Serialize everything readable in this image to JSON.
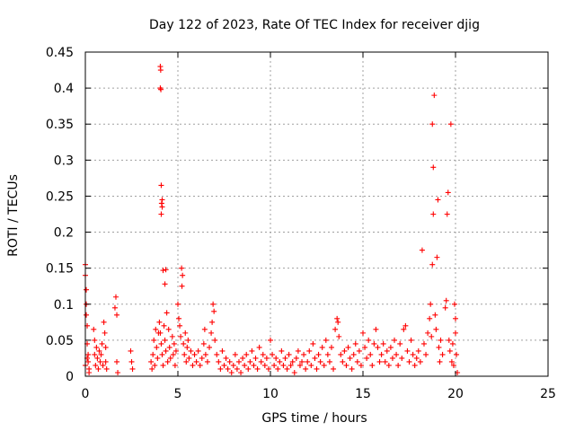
{
  "chart_data": {
    "type": "scatter",
    "title": "Day 122 of 2023, Rate Of TEC Index for receiver djig",
    "xlabel": "GPS time / hours",
    "ylabel": "ROTI / TECUs",
    "xlim": [
      0,
      25
    ],
    "ylim": [
      0,
      0.45
    ],
    "xticks": [
      "0",
      "5",
      "10",
      "15",
      "20",
      "25"
    ],
    "yticks": [
      "0",
      "0.05",
      "0.1",
      "0.15",
      "0.2",
      "0.25",
      "0.3",
      "0.35",
      "0.4",
      "0.45"
    ],
    "grid": true,
    "marker": "plus",
    "color": "#ff0000",
    "series": [
      {
        "points": [
          [
            0.0,
            0.155
          ],
          [
            0.0,
            0.14
          ],
          [
            0.05,
            0.12
          ],
          [
            0.05,
            0.1
          ],
          [
            0.05,
            0.085
          ],
          [
            0.1,
            0.07
          ],
          [
            0.1,
            0.045
          ],
          [
            0.15,
            0.03
          ],
          [
            0.15,
            0.02
          ],
          [
            0.2,
            0.01
          ],
          [
            0.2,
            0.005
          ],
          [
            0.1,
            0.025
          ],
          [
            0.0,
            0.015
          ],
          [
            0.45,
            0.065
          ],
          [
            0.5,
            0.05
          ],
          [
            0.5,
            0.03
          ],
          [
            0.55,
            0.015
          ],
          [
            0.6,
            0.04
          ],
          [
            0.65,
            0.025
          ],
          [
            0.7,
            0.01
          ],
          [
            0.75,
            0.035
          ],
          [
            0.8,
            0.02
          ],
          [
            0.85,
            0.03
          ],
          [
            0.9,
            0.045
          ],
          [
            0.95,
            0.015
          ],
          [
            1.0,
            0.075
          ],
          [
            1.05,
            0.06
          ],
          [
            1.1,
            0.04
          ],
          [
            1.1,
            0.02
          ],
          [
            1.15,
            0.01
          ],
          [
            1.6,
            0.095
          ],
          [
            1.65,
            0.11
          ],
          [
            1.7,
            0.085
          ],
          [
            1.7,
            0.02
          ],
          [
            1.75,
            0.005
          ],
          [
            2.45,
            0.035
          ],
          [
            2.5,
            0.02
          ],
          [
            2.55,
            0.01
          ],
          [
            3.55,
            0.02
          ],
          [
            3.6,
            0.01
          ],
          [
            3.65,
            0.03
          ],
          [
            3.7,
            0.05
          ],
          [
            3.75,
            0.015
          ],
          [
            3.8,
            0.065
          ],
          [
            3.85,
            0.04
          ],
          [
            3.9,
            0.025
          ],
          [
            3.95,
            0.06
          ],
          [
            4.05,
            0.43
          ],
          [
            4.07,
            0.425
          ],
          [
            4.05,
            0.4
          ],
          [
            4.08,
            0.398
          ],
          [
            4.1,
            0.265
          ],
          [
            4.15,
            0.245
          ],
          [
            4.12,
            0.24
          ],
          [
            4.15,
            0.235
          ],
          [
            4.1,
            0.225
          ],
          [
            4.2,
            0.147
          ],
          [
            4.35,
            0.148
          ],
          [
            4.3,
            0.128
          ],
          [
            4.0,
            0.075
          ],
          [
            4.05,
            0.06
          ],
          [
            4.1,
            0.045
          ],
          [
            4.15,
            0.03
          ],
          [
            4.2,
            0.015
          ],
          [
            4.25,
            0.07
          ],
          [
            4.3,
            0.05
          ],
          [
            4.35,
            0.035
          ],
          [
            4.4,
            0.088
          ],
          [
            4.45,
            0.02
          ],
          [
            4.5,
            0.065
          ],
          [
            4.55,
            0.04
          ],
          [
            4.6,
            0.025
          ],
          [
            4.7,
            0.055
          ],
          [
            4.75,
            0.03
          ],
          [
            4.8,
            0.045
          ],
          [
            4.85,
            0.015
          ],
          [
            4.9,
            0.035
          ],
          [
            5.0,
            0.1
          ],
          [
            5.05,
            0.08
          ],
          [
            5.1,
            0.07
          ],
          [
            5.15,
            0.055
          ],
          [
            5.2,
            0.15
          ],
          [
            5.25,
            0.14
          ],
          [
            5.22,
            0.125
          ],
          [
            5.3,
            0.045
          ],
          [
            5.35,
            0.03
          ],
          [
            5.4,
            0.06
          ],
          [
            5.45,
            0.02
          ],
          [
            5.5,
            0.04
          ],
          [
            5.55,
            0.05
          ],
          [
            5.6,
            0.025
          ],
          [
            5.7,
            0.035
          ],
          [
            5.8,
            0.015
          ],
          [
            5.9,
            0.03
          ],
          [
            6.0,
            0.02
          ],
          [
            6.1,
            0.035
          ],
          [
            6.2,
            0.015
          ],
          [
            6.3,
            0.025
          ],
          [
            6.4,
            0.045
          ],
          [
            6.45,
            0.065
          ],
          [
            6.5,
            0.03
          ],
          [
            6.6,
            0.02
          ],
          [
            6.7,
            0.04
          ],
          [
            6.8,
            0.06
          ],
          [
            6.85,
            0.075
          ],
          [
            6.9,
            0.1
          ],
          [
            6.95,
            0.09
          ],
          [
            7.0,
            0.05
          ],
          [
            7.1,
            0.03
          ],
          [
            7.2,
            0.02
          ],
          [
            7.3,
            0.01
          ],
          [
            7.4,
            0.035
          ],
          [
            7.5,
            0.015
          ],
          [
            7.6,
            0.025
          ],
          [
            7.7,
            0.01
          ],
          [
            7.8,
            0.02
          ],
          [
            7.9,
            0.005
          ],
          [
            8.0,
            0.015
          ],
          [
            8.1,
            0.03
          ],
          [
            8.2,
            0.01
          ],
          [
            8.3,
            0.02
          ],
          [
            8.4,
            0.005
          ],
          [
            8.5,
            0.025
          ],
          [
            8.6,
            0.015
          ],
          [
            8.7,
            0.03
          ],
          [
            8.8,
            0.01
          ],
          [
            8.9,
            0.02
          ],
          [
            9.0,
            0.035
          ],
          [
            9.1,
            0.015
          ],
          [
            9.2,
            0.025
          ],
          [
            9.3,
            0.01
          ],
          [
            9.4,
            0.04
          ],
          [
            9.5,
            0.02
          ],
          [
            9.6,
            0.03
          ],
          [
            9.7,
            0.015
          ],
          [
            9.8,
            0.025
          ],
          [
            9.9,
            0.01
          ],
          [
            10.0,
            0.05
          ],
          [
            10.1,
            0.03
          ],
          [
            10.2,
            0.015
          ],
          [
            10.3,
            0.025
          ],
          [
            10.4,
            0.01
          ],
          [
            10.5,
            0.02
          ],
          [
            10.6,
            0.035
          ],
          [
            10.7,
            0.015
          ],
          [
            10.8,
            0.025
          ],
          [
            10.9,
            0.01
          ],
          [
            11.0,
            0.03
          ],
          [
            11.1,
            0.015
          ],
          [
            11.2,
            0.02
          ],
          [
            11.3,
            0.005
          ],
          [
            11.4,
            0.025
          ],
          [
            11.5,
            0.035
          ],
          [
            11.6,
            0.015
          ],
          [
            11.7,
            0.02
          ],
          [
            11.8,
            0.03
          ],
          [
            11.9,
            0.01
          ],
          [
            12.0,
            0.02
          ],
          [
            12.1,
            0.035
          ],
          [
            12.2,
            0.015
          ],
          [
            12.3,
            0.045
          ],
          [
            12.4,
            0.025
          ],
          [
            12.5,
            0.01
          ],
          [
            12.6,
            0.03
          ],
          [
            12.7,
            0.02
          ],
          [
            12.8,
            0.04
          ],
          [
            12.9,
            0.015
          ],
          [
            13.0,
            0.05
          ],
          [
            13.1,
            0.03
          ],
          [
            13.2,
            0.02
          ],
          [
            13.3,
            0.04
          ],
          [
            13.4,
            0.01
          ],
          [
            13.5,
            0.065
          ],
          [
            13.6,
            0.08
          ],
          [
            13.65,
            0.075
          ],
          [
            13.7,
            0.055
          ],
          [
            13.8,
            0.03
          ],
          [
            13.9,
            0.02
          ],
          [
            14.0,
            0.035
          ],
          [
            14.1,
            0.015
          ],
          [
            14.2,
            0.04
          ],
          [
            14.3,
            0.025
          ],
          [
            14.4,
            0.01
          ],
          [
            14.5,
            0.03
          ],
          [
            14.6,
            0.045
          ],
          [
            14.7,
            0.02
          ],
          [
            14.8,
            0.035
          ],
          [
            14.9,
            0.015
          ],
          [
            15.0,
            0.06
          ],
          [
            15.1,
            0.04
          ],
          [
            15.2,
            0.025
          ],
          [
            15.3,
            0.05
          ],
          [
            15.4,
            0.03
          ],
          [
            15.5,
            0.015
          ],
          [
            15.6,
            0.045
          ],
          [
            15.7,
            0.065
          ],
          [
            15.8,
            0.04
          ],
          [
            15.9,
            0.02
          ],
          [
            16.0,
            0.03
          ],
          [
            16.1,
            0.045
          ],
          [
            16.2,
            0.02
          ],
          [
            16.3,
            0.035
          ],
          [
            16.4,
            0.015
          ],
          [
            16.5,
            0.04
          ],
          [
            16.6,
            0.025
          ],
          [
            16.7,
            0.05
          ],
          [
            16.8,
            0.03
          ],
          [
            16.9,
            0.015
          ],
          [
            17.0,
            0.045
          ],
          [
            17.1,
            0.025
          ],
          [
            17.2,
            0.065
          ],
          [
            17.3,
            0.07
          ],
          [
            17.4,
            0.035
          ],
          [
            17.5,
            0.02
          ],
          [
            17.6,
            0.05
          ],
          [
            17.7,
            0.03
          ],
          [
            17.8,
            0.015
          ],
          [
            17.9,
            0.025
          ],
          [
            18.0,
            0.035
          ],
          [
            18.1,
            0.02
          ],
          [
            18.2,
            0.175
          ],
          [
            18.3,
            0.045
          ],
          [
            18.4,
            0.03
          ],
          [
            18.5,
            0.06
          ],
          [
            18.6,
            0.08
          ],
          [
            18.65,
            0.1
          ],
          [
            18.7,
            0.055
          ],
          [
            18.75,
            0.35
          ],
          [
            18.8,
            0.29
          ],
          [
            18.8,
            0.225
          ],
          [
            18.75,
            0.155
          ],
          [
            18.85,
            0.39
          ],
          [
            18.9,
            0.085
          ],
          [
            18.95,
            0.065
          ],
          [
            19.0,
            0.165
          ],
          [
            19.05,
            0.245
          ],
          [
            19.1,
            0.04
          ],
          [
            19.15,
            0.02
          ],
          [
            19.2,
            0.05
          ],
          [
            19.3,
            0.03
          ],
          [
            19.45,
            0.095
          ],
          [
            19.5,
            0.105
          ],
          [
            19.55,
            0.225
          ],
          [
            19.6,
            0.255
          ],
          [
            19.65,
            0.05
          ],
          [
            19.7,
            0.035
          ],
          [
            19.75,
            0.35
          ],
          [
            19.8,
            0.02
          ],
          [
            19.85,
            0.045
          ],
          [
            19.9,
            0.015
          ],
          [
            19.95,
            0.1
          ],
          [
            20.0,
            0.08
          ],
          [
            20.0,
            0.06
          ],
          [
            20.05,
            0.03
          ],
          [
            20.1,
            0.005
          ]
        ]
      }
    ]
  }
}
